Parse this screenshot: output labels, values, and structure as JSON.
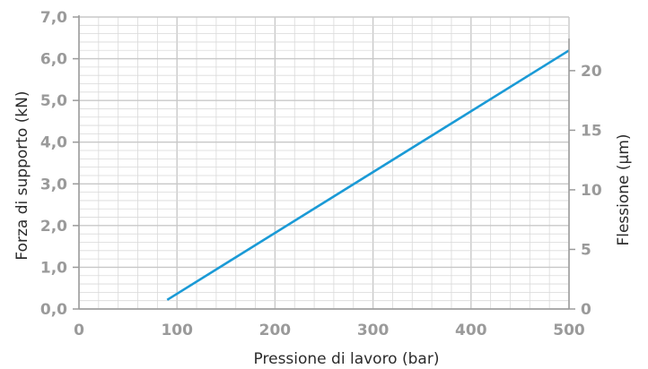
{
  "chart_data": {
    "type": "line",
    "xlabel": "Pressione di lavoro (bar)",
    "ylabel": "Forza di supporto (kN)",
    "y2label": "Flessione (µm)",
    "xlim": [
      0,
      500
    ],
    "ylim": [
      0,
      7
    ],
    "y2lim": [
      0,
      24.5
    ],
    "grid": true,
    "x_ticks": [
      0,
      100,
      200,
      300,
      400,
      500
    ],
    "y_ticks": [
      "0,0",
      "1,0",
      "2,0",
      "3,0",
      "4,0",
      "5,0",
      "6,0",
      "7,0"
    ],
    "y2_ticks": [
      0,
      5,
      10,
      15,
      20
    ],
    "series": [
      {
        "x": [
          90,
          500
        ],
        "y": [
          0.22,
          6.2
        ]
      }
    ],
    "colors": {
      "line": "#1a9ad6",
      "grid": "#d9d9d9",
      "axis": "#9a9a9a",
      "tick_text": "#9a9a9a"
    }
  }
}
